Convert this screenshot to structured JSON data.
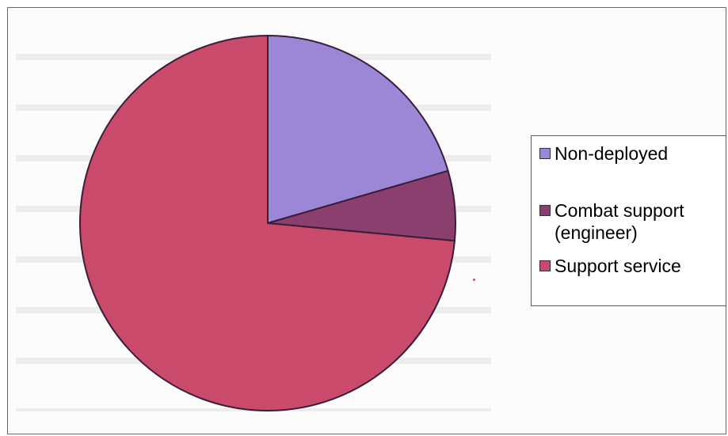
{
  "chart_data": {
    "type": "pie",
    "title": "",
    "slices": [
      {
        "label": "Non-deployed",
        "value": 20.5,
        "color": "#9b87d6"
      },
      {
        "label": "Combat support\n(engineer)",
        "value": 6.0,
        "color": "#8b3f6e"
      },
      {
        "label": "Support service",
        "value": 73.5,
        "color": "#c94a6a"
      }
    ],
    "start_angle_deg": 0,
    "direction": "clockwise",
    "legend_position": "right"
  }
}
